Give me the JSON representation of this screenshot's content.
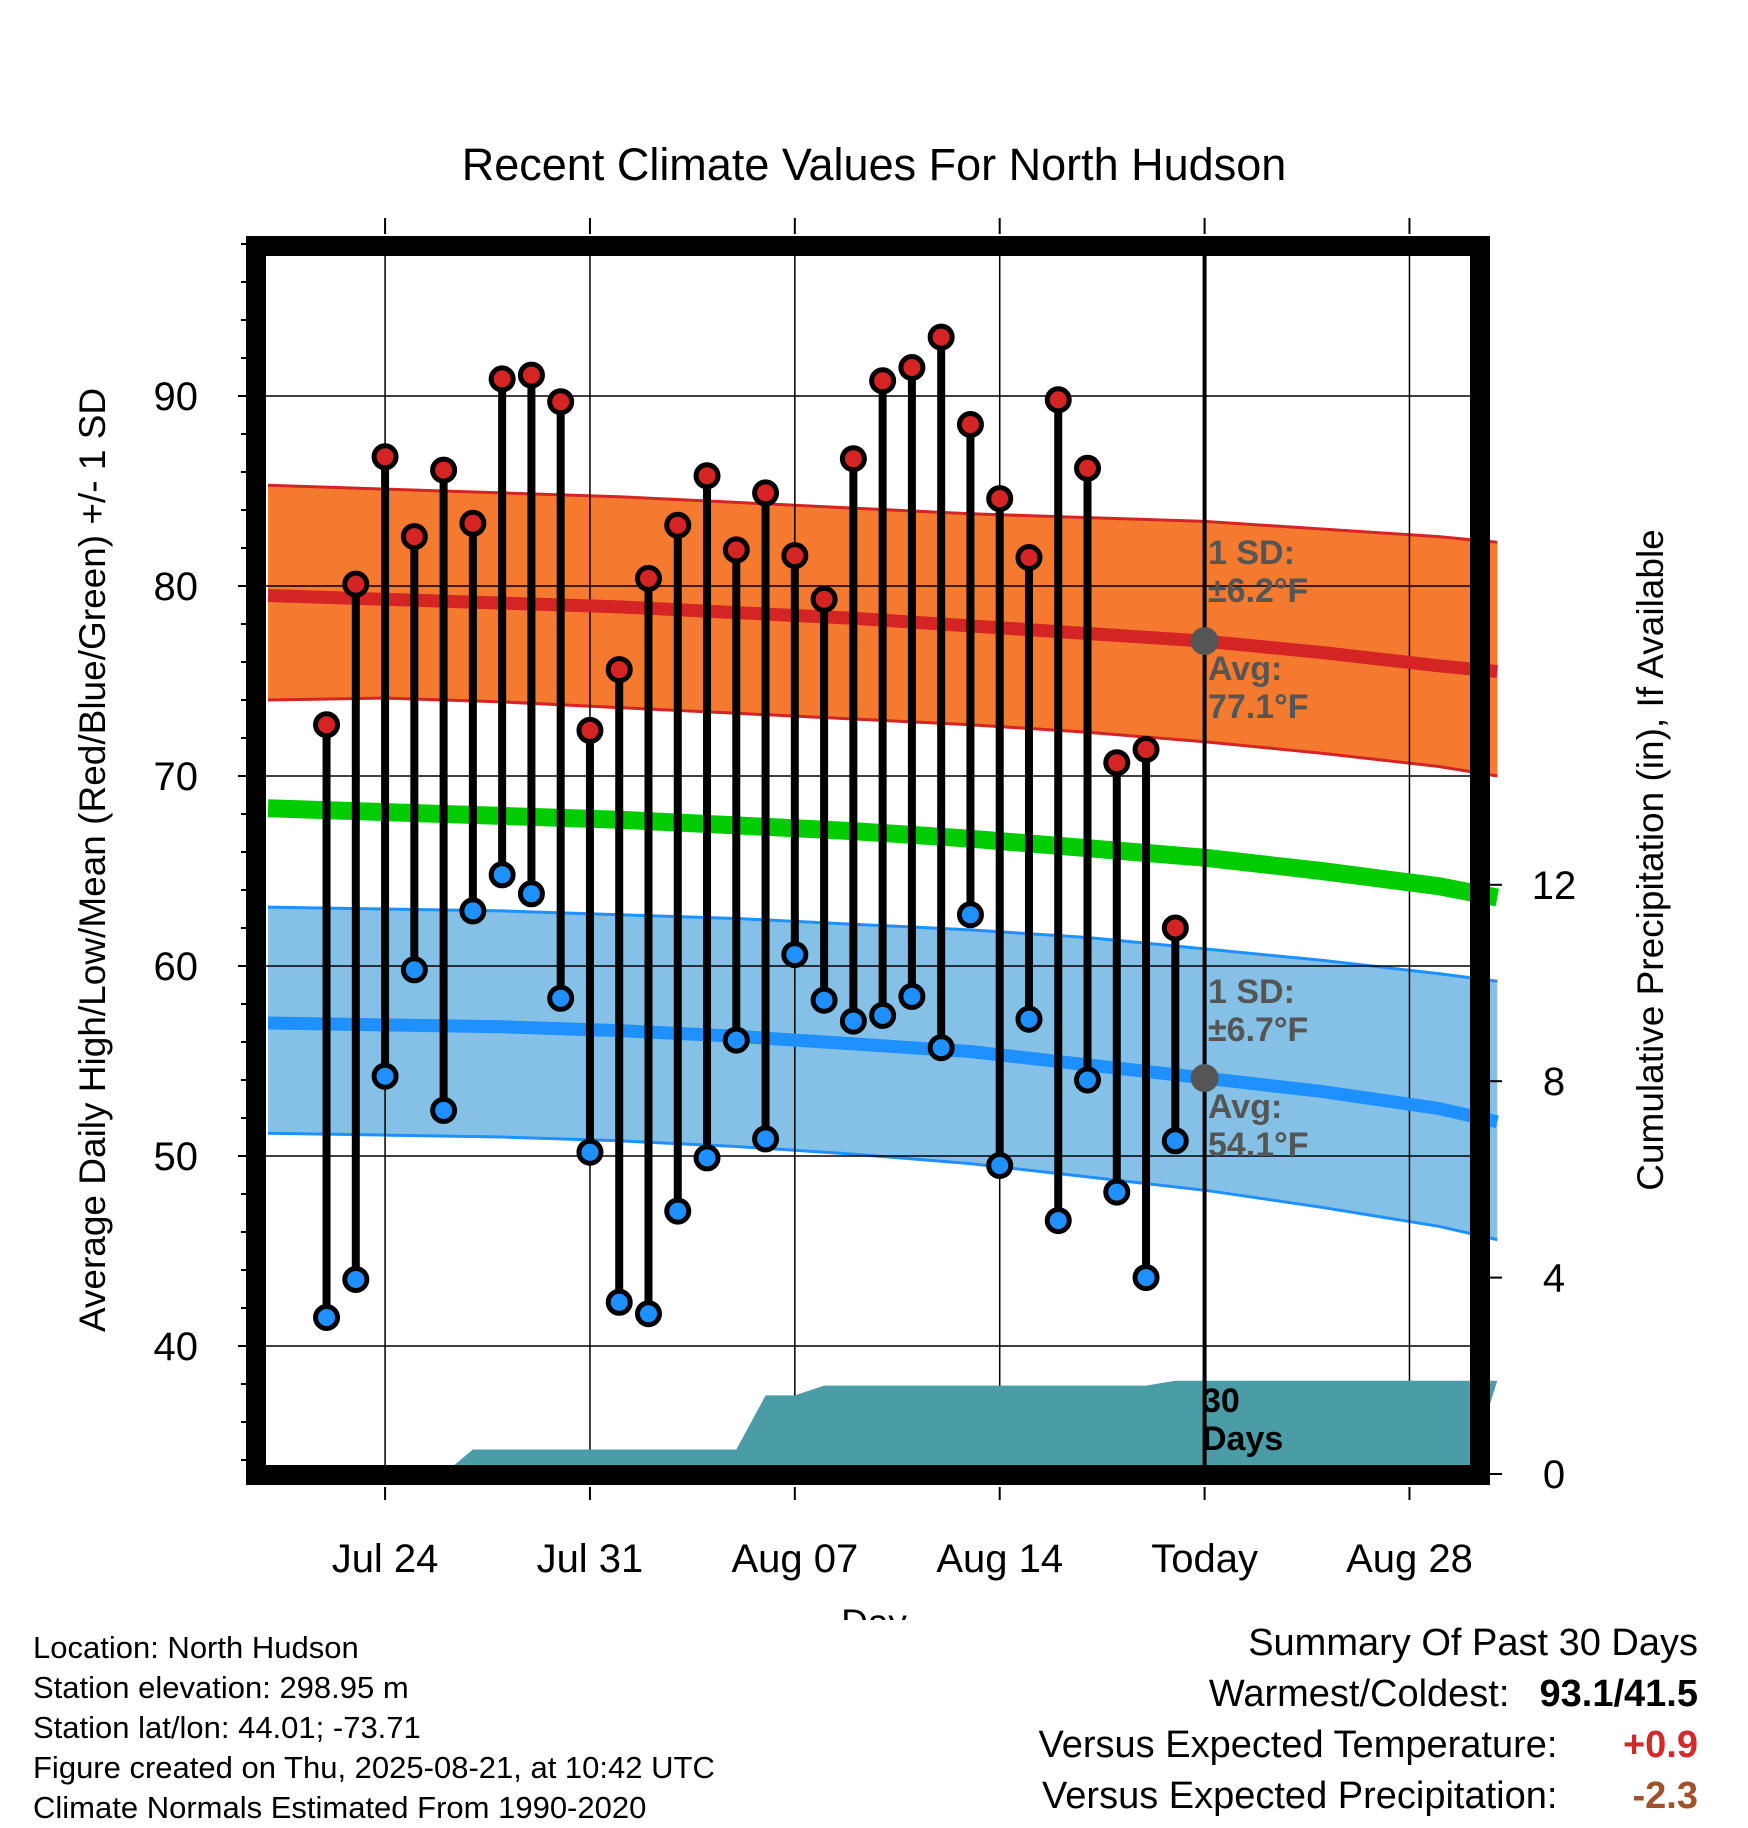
{
  "chart_data": {
    "type": "line",
    "title": "Recent Climate Values For North Hudson",
    "xlabel": "Day",
    "ylabel": "Average Daily High/Low/Mean (Red/Blue/Green) +/- 1 SD",
    "y2label": "Cumulative Precipitation (in), If Available",
    "ylim": [
      34,
      98
    ],
    "y2lim": [
      0,
      24
    ],
    "yticks": [
      40,
      50,
      60,
      70,
      80,
      90
    ],
    "y2ticks": [
      0,
      4,
      8,
      12
    ],
    "xlim": [
      "2025-07-20",
      "2025-08-31"
    ],
    "xticks": [
      {
        "date": "2025-07-24",
        "label": "Jul 24"
      },
      {
        "date": "2025-07-31",
        "label": "Jul 31"
      },
      {
        "date": "2025-08-07",
        "label": "Aug 07"
      },
      {
        "date": "2025-08-14",
        "label": "Aug 14"
      },
      {
        "date": "2025-08-21",
        "label": "Today"
      },
      {
        "date": "2025-08-28",
        "label": "Aug 28"
      }
    ],
    "grid": true,
    "today": "2025-08-21",
    "observed": {
      "dates": [
        "2025-07-22",
        "2025-07-23",
        "2025-07-24",
        "2025-07-25",
        "2025-07-26",
        "2025-07-27",
        "2025-07-28",
        "2025-07-29",
        "2025-07-30",
        "2025-07-31",
        "2025-08-01",
        "2025-08-02",
        "2025-08-03",
        "2025-08-04",
        "2025-08-05",
        "2025-08-06",
        "2025-08-07",
        "2025-08-08",
        "2025-08-09",
        "2025-08-10",
        "2025-08-11",
        "2025-08-12",
        "2025-08-13",
        "2025-08-14",
        "2025-08-15",
        "2025-08-16",
        "2025-08-17",
        "2025-08-18",
        "2025-08-19",
        "2025-08-20"
      ],
      "highs": [
        72.7,
        80.1,
        86.8,
        82.6,
        86.1,
        83.3,
        90.9,
        91.1,
        89.7,
        72.4,
        75.6,
        80.4,
        83.2,
        85.8,
        81.9,
        84.9,
        81.6,
        79.3,
        86.7,
        90.8,
        91.5,
        93.1,
        88.5,
        84.6,
        81.5,
        89.8,
        86.2,
        70.7,
        71.4,
        62.0
      ],
      "lows": [
        41.5,
        43.5,
        54.2,
        59.8,
        52.4,
        62.9,
        64.8,
        63.8,
        58.3,
        50.2,
        42.3,
        41.7,
        47.1,
        49.9,
        56.1,
        50.9,
        60.6,
        58.2,
        57.1,
        57.4,
        58.4,
        55.7,
        62.7,
        49.5,
        57.2,
        46.6,
        54.0,
        48.1,
        43.6,
        50.8
      ]
    },
    "normals": {
      "dates": [
        "2025-07-20",
        "2025-07-24",
        "2025-07-28",
        "2025-08-01",
        "2025-08-05",
        "2025-08-09",
        "2025-08-13",
        "2025-08-17",
        "2025-08-21",
        "2025-08-25",
        "2025-08-29",
        "2025-08-31"
      ],
      "high_mean": [
        79.5,
        79.3,
        79.1,
        78.9,
        78.6,
        78.3,
        77.9,
        77.5,
        77.1,
        76.5,
        75.8,
        75.5
      ],
      "low_mean": [
        57.0,
        56.9,
        56.8,
        56.6,
        56.3,
        55.9,
        55.5,
        54.8,
        54.1,
        53.4,
        52.5,
        51.8
      ],
      "mean": [
        68.3,
        68.1,
        67.9,
        67.7,
        67.4,
        67.1,
        66.7,
        66.2,
        65.7,
        65.0,
        64.2,
        63.6
      ],
      "high_sd_band": {
        "upper": [
          85.3,
          85.1,
          84.9,
          84.7,
          84.4,
          84.1,
          83.8,
          83.6,
          83.4,
          83.0,
          82.6,
          82.3
        ],
        "lower": [
          74.0,
          74.1,
          73.9,
          73.6,
          73.3,
          73.0,
          72.7,
          72.3,
          71.8,
          71.2,
          70.5,
          70.0
        ]
      },
      "low_sd_band": {
        "upper": [
          63.1,
          63.0,
          62.9,
          62.7,
          62.5,
          62.2,
          61.9,
          61.5,
          60.9,
          60.3,
          59.6,
          59.2
        ],
        "lower": [
          51.2,
          51.1,
          51.0,
          50.8,
          50.5,
          50.1,
          49.6,
          48.9,
          48.2,
          47.3,
          46.3,
          45.6
        ]
      }
    },
    "precip_cumulative": {
      "dates": [
        "2025-07-20",
        "2025-07-26",
        "2025-07-27",
        "2025-08-04",
        "2025-08-05",
        "2025-08-06",
        "2025-08-07",
        "2025-08-08",
        "2025-08-19",
        "2025-08-20",
        "2025-08-31"
      ],
      "values": [
        0,
        0,
        0.5,
        0.5,
        0.5,
        1.6,
        1.6,
        1.8,
        1.8,
        1.9,
        1.9
      ]
    },
    "annotations": {
      "high_sd": "1 SD:\n±6.2°F",
      "high_avg": "Avg:\n77.1°F",
      "low_sd": "1 SD:\n±6.7°F",
      "low_avg": "Avg:\n54.1°F",
      "period": "30\nDays"
    },
    "colors": {
      "high_band": "#f47a30",
      "high_line": "#d42424",
      "low_band": "#85c1e6",
      "low_line": "#1e90ff",
      "mean_line": "#00cc00",
      "precip": "#4a9ca6",
      "annotation": "#555555"
    }
  },
  "footer": {
    "location": "Location: North Hudson",
    "elevation": "Station elevation: 298.95 m",
    "latlon": "Station lat/lon: 44.01; -73.71",
    "created": "Figure created on Thu, 2025-08-21, at 10:42 UTC",
    "normals": "Climate Normals Estimated From 1990-2020"
  },
  "summary": {
    "title": "Summary Of Past 30 Days",
    "warm_cold_label": "Warmest/Coldest:",
    "warm_cold_value": "93.1/41.5",
    "temp_label": "Versus Expected Temperature:",
    "temp_value": "+0.9",
    "precip_label": "Versus Expected Precipitation:",
    "precip_value": "-2.3"
  }
}
